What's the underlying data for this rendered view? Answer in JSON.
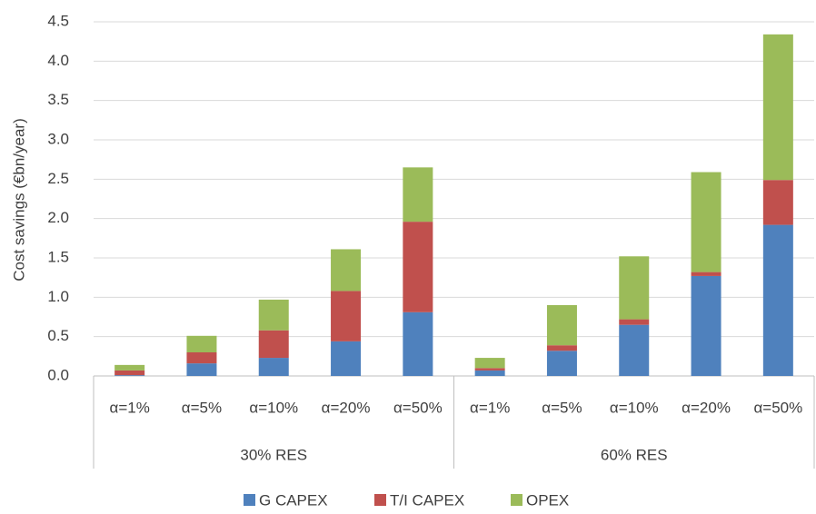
{
  "chart_data": {
    "type": "stacked_bar",
    "y_label": "Cost savings (€bn/year)",
    "category_groups": [
      {
        "name": "30% RES",
        "categories": [
          "α=1%",
          "α=5%",
          "α=10%",
          "α=20%",
          "α=50%"
        ]
      },
      {
        "name": "60% RES",
        "categories": [
          "α=1%",
          "α=5%",
          "α=10%",
          "α=20%",
          "α=50%"
        ]
      }
    ],
    "series": [
      {
        "name": "G CAPEX",
        "color": "#4f81bd",
        "values": [
          0.01,
          0.16,
          0.23,
          0.44,
          0.81,
          0.07,
          0.32,
          0.65,
          1.27,
          1.92
        ]
      },
      {
        "name": "T/I CAPEX",
        "color": "#c0504d",
        "values": [
          0.06,
          0.14,
          0.35,
          0.64,
          1.15,
          0.03,
          0.07,
          0.07,
          0.05,
          0.57
        ]
      },
      {
        "name": "OPEX",
        "color": "#9bbb59",
        "values": [
          0.07,
          0.21,
          0.39,
          0.53,
          0.69,
          0.13,
          0.51,
          0.8,
          1.27,
          1.85
        ]
      }
    ],
    "ylim": [
      0,
      4.5
    ],
    "yticks": [
      {
        "value": 0,
        "label": "0.0"
      },
      0.5,
      {
        "value": 1,
        "label": "1.0"
      },
      1.5,
      {
        "value": 2,
        "label": "2.0"
      },
      2.5,
      {
        "value": 3,
        "label": "3.0"
      },
      3.5,
      {
        "value": 4,
        "label": "4.0"
      },
      4.5
    ],
    "grid": true,
    "legend": "bottom"
  }
}
